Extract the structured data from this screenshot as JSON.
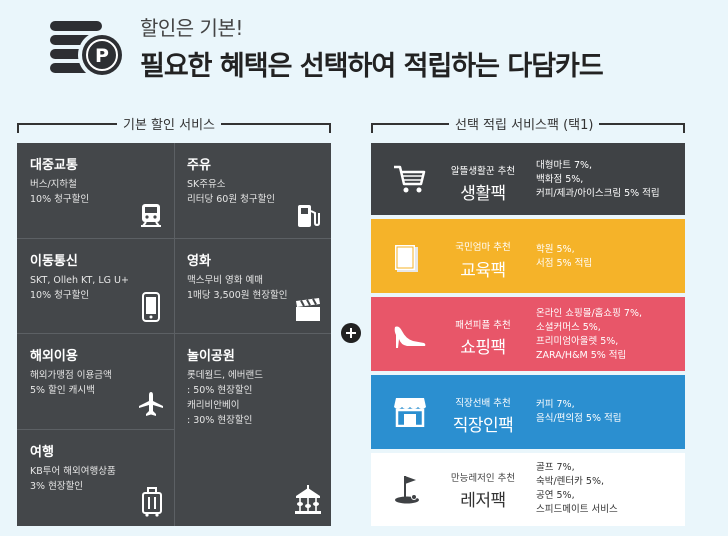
{
  "header": {
    "subtitle": "할인은 기본!",
    "title": "필요한 혜택은 선택하여 적립하는 다담카드",
    "coin_letter": "P"
  },
  "basic": {
    "section_label": "기본 할인 서비스",
    "items": [
      {
        "title": "대중교통",
        "lines": [
          "버스/지하철",
          "10% 청구할인"
        ],
        "icon": "train-icon"
      },
      {
        "title": "주유",
        "lines": [
          "SK주유소",
          "리터당 60원 청구할인"
        ],
        "icon": "gas-pump-icon"
      },
      {
        "title": "이동통신",
        "lines": [
          "SKT, Olleh KT, LG U+",
          "10% 청구할인"
        ],
        "icon": "mobile-phone-icon"
      },
      {
        "title": "영화",
        "lines": [
          "맥스무비 영화 예매",
          "1매당 3,500원 현장할인"
        ],
        "icon": "clapperboard-icon"
      },
      {
        "title": "해외이용",
        "lines": [
          "해외가맹점 이용금액",
          "5% 할인 캐시백"
        ],
        "icon": "airplane-icon"
      },
      {
        "title": "놀이공원",
        "lines": [
          "롯데월드, 에버랜드",
          ": 50% 현장할인",
          "캐리비안베이",
          ": 30% 현장할인"
        ],
        "icon": "carousel-icon"
      },
      {
        "title": "여행",
        "lines": [
          "KB투어 해외여행상품",
          "3% 현장할인"
        ],
        "icon": "luggage-icon"
      }
    ]
  },
  "select": {
    "section_label": "선택 적립 서비스팩 (택1)",
    "packs": [
      {
        "rec": "알뜰생활꾼 추천",
        "name": "생활팩",
        "lines": [
          "대형마트 7%,",
          "백화점 5%,",
          "커피/제과/아이스크림 5% 적립"
        ],
        "bg": "#3f4245",
        "fg": "#ffffff",
        "icon": "shopping-cart-icon"
      },
      {
        "rec": "국민엄마 추천",
        "name": "교육팩",
        "lines": [
          "학원 5%,",
          "서점 5% 적립"
        ],
        "bg": "#f5b329",
        "fg": "#ffffff",
        "icon": "book-icon"
      },
      {
        "rec": "패션피플 추천",
        "name": "쇼핑팩",
        "lines": [
          "온라인 쇼핑몰/홈쇼핑 7%,",
          "소셜커머스 5%,",
          "프리미엄아울렛 5%,",
          "ZARA/H&M 5% 적립"
        ],
        "bg": "#e85669",
        "fg": "#ffffff",
        "icon": "high-heel-icon"
      },
      {
        "rec": "직장선배 추천",
        "name": "직장인팩",
        "lines": [
          "커피 7%,",
          "음식/편의점 5% 적립"
        ],
        "bg": "#2b8fd0",
        "fg": "#ffffff",
        "icon": "storefront-icon"
      },
      {
        "rec": "만능레저인 추천",
        "name": "레저팩",
        "lines": [
          "골프 7%,",
          "숙박/렌터카 5%,",
          "공연 5%,",
          "스피드메이트 서비스"
        ],
        "bg": "#ffffff",
        "fg": "#333333",
        "icon": "golf-flag-icon"
      }
    ]
  }
}
